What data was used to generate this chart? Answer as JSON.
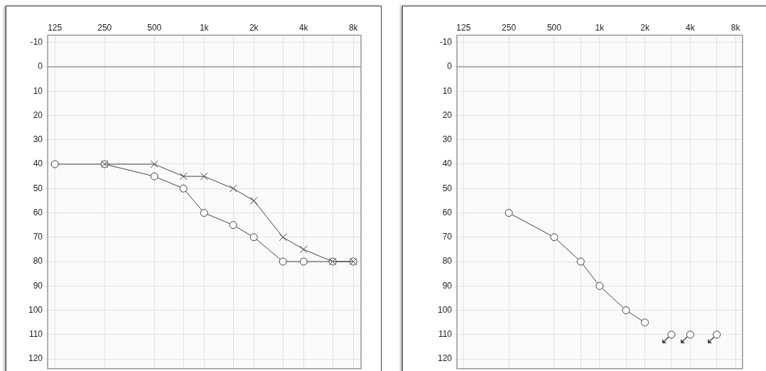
{
  "chart_data": [
    {
      "type": "line",
      "log": "x",
      "xlim": [
        113,
        8900
      ],
      "ylim": [
        124,
        -13
      ],
      "xticks": [
        {
          "value": 125,
          "label": "125"
        },
        {
          "value": 250,
          "label": "250"
        },
        {
          "value": 500,
          "label": "500"
        },
        {
          "value": 750,
          "label": null
        },
        {
          "value": 1000,
          "label": "1k"
        },
        {
          "value": 1500,
          "label": null
        },
        {
          "value": 2000,
          "label": "2k"
        },
        {
          "value": 3000,
          "label": null
        },
        {
          "value": 4000,
          "label": "4k"
        },
        {
          "value": 6000,
          "label": null
        },
        {
          "value": 8000,
          "label": "8k"
        }
      ],
      "yticks": [
        -10,
        0,
        10,
        20,
        30,
        40,
        50,
        60,
        70,
        80,
        90,
        100,
        110,
        120
      ],
      "grid": true,
      "legend": false,
      "line_style": "solid",
      "ref_lines": [
        {
          "axis": "y",
          "value": 0,
          "color": "#999999"
        }
      ],
      "series": [
        {
          "type": "line",
          "marker": "circle",
          "color": "#444444",
          "x": [
            125,
            250,
            500,
            750,
            1000,
            1500,
            2000,
            3000,
            4000,
            6000,
            8000
          ],
          "values": [
            40,
            40,
            45,
            50,
            60,
            65,
            70,
            80,
            80,
            80,
            80
          ]
        },
        {
          "type": "line",
          "marker": "cross",
          "color": "#444444",
          "x": [
            250,
            500,
            750,
            1000,
            1500,
            2000,
            3000,
            4000,
            6000,
            8000
          ],
          "values": [
            40,
            40,
            45,
            45,
            50,
            55,
            70,
            75,
            80,
            80
          ]
        }
      ]
    },
    {
      "type": "line",
      "log": "x",
      "xlim": [
        113,
        8900
      ],
      "ylim": [
        124,
        -13
      ],
      "xticks": [
        {
          "value": 125,
          "label": "125"
        },
        {
          "value": 250,
          "label": "250"
        },
        {
          "value": 500,
          "label": "500"
        },
        {
          "value": 750,
          "label": null
        },
        {
          "value": 1000,
          "label": "1k"
        },
        {
          "value": 1500,
          "label": null
        },
        {
          "value": 2000,
          "label": "2k"
        },
        {
          "value": 3000,
          "label": null
        },
        {
          "value": 4000,
          "label": "4k"
        },
        {
          "value": 6000,
          "label": null
        },
        {
          "value": 8000,
          "label": "8k"
        }
      ],
      "yticks": [
        -10,
        0,
        10,
        20,
        30,
        40,
        50,
        60,
        70,
        80,
        90,
        100,
        110,
        120
      ],
      "grid": true,
      "legend": false,
      "line_style": "solid",
      "ref_lines": [
        {
          "axis": "y",
          "value": 0,
          "color": "#999999"
        }
      ],
      "series": [
        {
          "type": "line",
          "marker": "circle",
          "color": "#444444",
          "x": [
            250,
            500,
            750,
            1000,
            1500,
            2000
          ],
          "values": [
            60,
            70,
            80,
            90,
            100,
            105
          ]
        },
        {
          "type": "scatter",
          "marker": "circle",
          "color": "#444444",
          "x": [
            3000,
            4000,
            6000
          ],
          "values": [
            110,
            110,
            110
          ]
        }
      ]
    }
  ]
}
